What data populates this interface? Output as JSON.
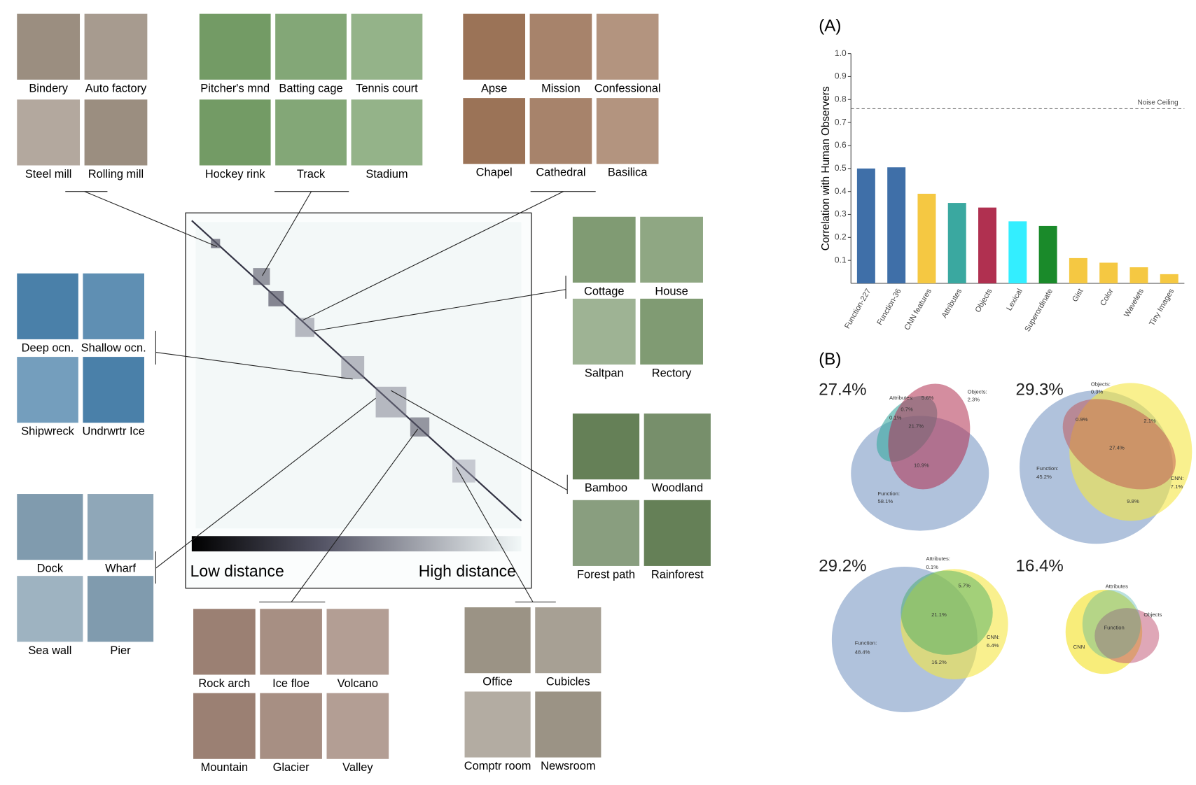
{
  "chart_data": {
    "type": "bar",
    "panel_label": "(A)",
    "ylabel": "Correlation with Human Observers",
    "categories": [
      "Function-227",
      "Function-36",
      "CNN features",
      "Attributes",
      "Objects",
      "Lexical",
      "Superordinate",
      "Gist",
      "Color",
      "Wavelets",
      "Tiny Images"
    ],
    "values": [
      0.5,
      0.505,
      0.39,
      0.35,
      0.33,
      0.27,
      0.25,
      0.11,
      0.09,
      0.07,
      0.04
    ],
    "colors": [
      "#3f6fa8",
      "#3f6fa8",
      "#f5c842",
      "#3aa8a0",
      "#b03050",
      "#33eeff",
      "#1a8a2a",
      "#f5c842",
      "#f5c842",
      "#f5c842",
      "#f5c842"
    ],
    "ylim": [
      0,
      1
    ],
    "yticks": [
      0.1,
      0.2,
      0.3,
      0.4,
      0.5,
      0.6,
      0.7,
      0.8,
      0.9,
      {
        "value": 1,
        "label": "1.0"
      }
    ],
    "noise_ceiling": {
      "label": "Noise Ceiling",
      "value": 0.76
    }
  },
  "venn_panel_label": "(B)",
  "venns": [
    {
      "total": "27.4%",
      "labels": [
        "Attributes:",
        "0.1%",
        "0.7%",
        "5.6%",
        "Objects:",
        "2.3%",
        "21.7%",
        "10.9%",
        "Function:",
        "58.1%"
      ]
    },
    {
      "total": "29.3%",
      "labels": [
        "Objects:",
        "0.3%",
        "0.9%",
        "2.1%",
        "27.4%",
        "Function:",
        "45.2%",
        "CNN:",
        "7.1%",
        "9.8%"
      ]
    },
    {
      "total": "29.2%",
      "labels": [
        "Attributes:",
        "0.1%",
        "5.7%",
        "21.1%",
        "CNN:",
        "6.4%",
        "16.2%",
        "Function:",
        "48.4%"
      ]
    },
    {
      "total": "16.4%",
      "labels": [
        "Attributes",
        "Objects",
        "CNN",
        "Function"
      ]
    }
  ],
  "image_groups": [
    {
      "images": [
        "Bindery",
        "Auto factory",
        "Steel mill",
        "Rolling mill"
      ]
    },
    {
      "images": [
        "Pitcher's mnd",
        "Batting cage",
        "Tennis court",
        "Hockey rink",
        "Track",
        "Stadium"
      ]
    },
    {
      "images": [
        "Apse",
        "Mission",
        "Confessional",
        "Chapel",
        "Cathedral",
        "Basilica"
      ]
    },
    {
      "images": [
        "Cottage",
        "House",
        "Saltpan",
        "Rectory"
      ]
    },
    {
      "images": [
        "Bamboo",
        "Woodland",
        "Forest path",
        "Rainforest"
      ]
    },
    {
      "images": [
        "Deep ocn.",
        "Shallow ocn.",
        "Shipwreck",
        "Undrwrtr Ice"
      ]
    },
    {
      "images": [
        "Dock",
        "Wharf",
        "Sea wall",
        "Pier"
      ]
    },
    {
      "images": [
        "Rock arch",
        "Ice floe",
        "Volcano",
        "Mountain",
        "Glacier",
        "Valley"
      ]
    },
    {
      "images": [
        "Office",
        "Cubicles",
        "Comptr room",
        "Newsroom"
      ]
    }
  ],
  "colorbar": {
    "low": "Low distance",
    "high": "High distance"
  }
}
